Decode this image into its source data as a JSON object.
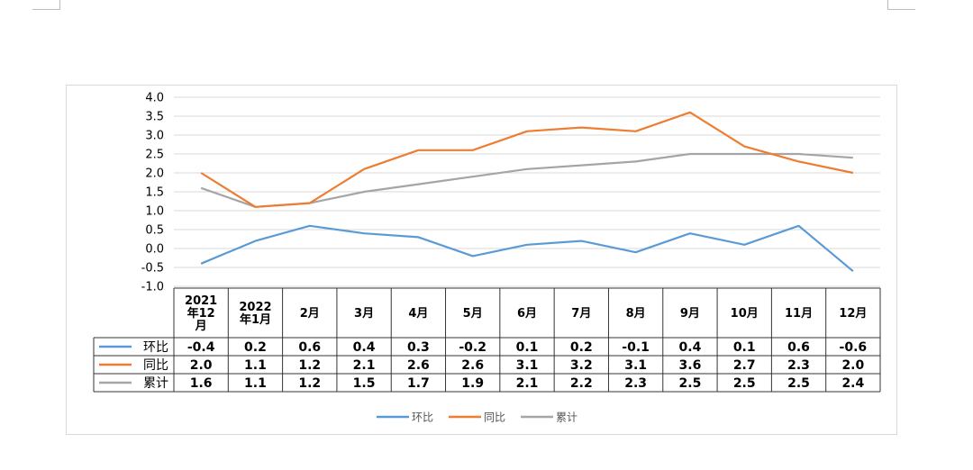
{
  "chart_data": {
    "type": "line",
    "title": "",
    "xlabel": "",
    "ylabel": "",
    "ylim": [
      -1.0,
      4.0
    ],
    "yticks": [
      "4.0",
      "3.5",
      "3.0",
      "2.5",
      "2.0",
      "1.5",
      "1.0",
      "0.5",
      "0.0",
      "-0.5",
      "-1.0"
    ],
    "grid": true,
    "legend": "bottom",
    "categories": [
      [
        "2021",
        "年12",
        "月"
      ],
      [
        "2022",
        "年1月"
      ],
      [
        "2月"
      ],
      [
        "3月"
      ],
      [
        "4月"
      ],
      [
        "5月"
      ],
      [
        "6月"
      ],
      [
        "7月"
      ],
      [
        "8月"
      ],
      [
        "9月"
      ],
      [
        "10月"
      ],
      [
        "11月"
      ],
      [
        "12月"
      ]
    ],
    "series": [
      {
        "name": "环比",
        "color": "#5b9bd5",
        "values": [
          -0.4,
          0.2,
          0.6,
          0.4,
          0.3,
          -0.2,
          0.1,
          0.2,
          -0.1,
          0.4,
          0.1,
          0.6,
          -0.6
        ],
        "labels": [
          "-0.4",
          "0.2",
          "0.6",
          "0.4",
          "0.3",
          "-0.2",
          "0.1",
          "0.2",
          "-0.1",
          "0.4",
          "0.1",
          "0.6",
          "-0.6"
        ]
      },
      {
        "name": "同比",
        "color": "#ed7d31",
        "values": [
          2.0,
          1.1,
          1.2,
          2.1,
          2.6,
          2.6,
          3.1,
          3.2,
          3.1,
          3.6,
          2.7,
          2.3,
          2.0
        ],
        "labels": [
          "2.0",
          "1.1",
          "1.2",
          "2.1",
          "2.6",
          "2.6",
          "3.1",
          "3.2",
          "3.1",
          "3.6",
          "2.7",
          "2.3",
          "2.0"
        ]
      },
      {
        "name": "累计",
        "color": "#a5a5a5",
        "values": [
          1.6,
          1.1,
          1.2,
          1.5,
          1.7,
          1.9,
          2.1,
          2.2,
          2.3,
          2.5,
          2.5,
          2.5,
          2.4
        ],
        "labels": [
          "1.6",
          "1.1",
          "1.2",
          "1.5",
          "1.7",
          "1.9",
          "2.1",
          "2.2",
          "2.3",
          "2.5",
          "2.5",
          "2.5",
          "2.4"
        ]
      }
    ]
  }
}
